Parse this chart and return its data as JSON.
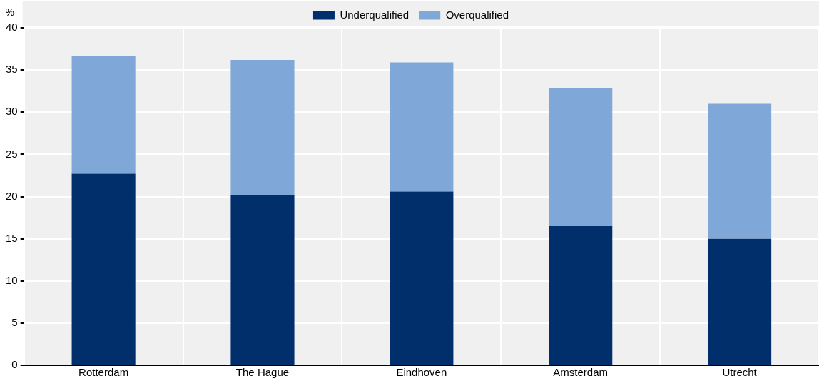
{
  "chart_data": {
    "type": "bar",
    "stacked": true,
    "ylabel": "%",
    "categories": [
      "Rotterdam",
      "The Hague",
      "Eindhoven",
      "Amsterdam",
      "Utrecht"
    ],
    "series": [
      {
        "name": "Underqualified",
        "color": "#002f6c",
        "values": [
          22.7,
          20.2,
          20.6,
          16.5,
          15.0
        ]
      },
      {
        "name": "Overqualified",
        "color": "#7fa8d9",
        "values": [
          14.0,
          16.0,
          15.3,
          16.4,
          16.0
        ]
      }
    ],
    "ylim": [
      0,
      40
    ],
    "yticks": [
      0,
      5,
      10,
      15,
      20,
      25,
      30,
      35,
      40
    ],
    "grid": true,
    "legend": "top"
  }
}
